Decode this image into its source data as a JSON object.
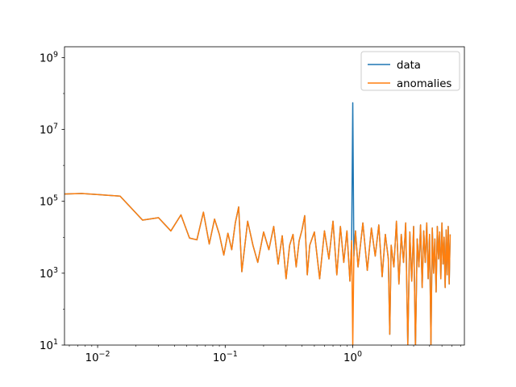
{
  "chart_data": {
    "type": "line",
    "title": "",
    "xlabel": "",
    "ylabel": "",
    "xscale": "log",
    "yscale": "log",
    "xlim": [
      0.0055,
      7.5
    ],
    "ylim": [
      10,
      2000000000.0
    ],
    "grid": false,
    "legend_position": "top-right",
    "x_ticks": [
      {
        "base": "10",
        "exp": "−2",
        "value": 0.01
      },
      {
        "base": "10",
        "exp": "−1",
        "value": 0.1
      },
      {
        "base": "10",
        "exp": "0",
        "value": 1
      }
    ],
    "y_ticks": [
      {
        "base": "10",
        "exp": "1",
        "value": 10
      },
      {
        "base": "10",
        "exp": "3",
        "value": 1000
      },
      {
        "base": "10",
        "exp": "5",
        "value": 100000
      },
      {
        "base": "10",
        "exp": "7",
        "value": 10000000
      },
      {
        "base": "10",
        "exp": "9",
        "value": 1000000000
      }
    ],
    "series": [
      {
        "name": "data",
        "color": "#1f77b4",
        "points": [
          [
            0.0055,
            160000
          ],
          [
            0.0075,
            165000
          ],
          [
            0.015,
            140000
          ],
          [
            0.0225,
            30000
          ],
          [
            0.03,
            35000
          ],
          [
            0.0375,
            15000
          ],
          [
            0.045,
            42000
          ],
          [
            0.0525,
            9500
          ],
          [
            0.06,
            8500
          ],
          [
            0.0675,
            50000
          ],
          [
            0.075,
            6500
          ],
          [
            0.0825,
            32000
          ],
          [
            0.09,
            12000
          ],
          [
            0.0975,
            3200
          ],
          [
            0.105,
            13000
          ],
          [
            0.1125,
            4500
          ],
          [
            0.12,
            25000
          ],
          [
            0.1275,
            70000
          ],
          [
            0.135,
            1100
          ],
          [
            0.15,
            28000
          ],
          [
            0.165,
            6000
          ],
          [
            0.18,
            2000
          ],
          [
            0.2,
            14000
          ],
          [
            0.22,
            4500
          ],
          [
            0.24,
            20000
          ],
          [
            0.26,
            1800
          ],
          [
            0.28,
            11000
          ],
          [
            0.3,
            700
          ],
          [
            0.32,
            6000
          ],
          [
            0.34,
            12000
          ],
          [
            0.36,
            1500
          ],
          [
            0.38,
            8000
          ],
          [
            0.4,
            16000
          ],
          [
            0.42,
            40000
          ],
          [
            0.44,
            900
          ],
          [
            0.46,
            6000
          ],
          [
            0.5,
            14000
          ],
          [
            0.55,
            700
          ],
          [
            0.6,
            15000
          ],
          [
            0.65,
            2500
          ],
          [
            0.7,
            28000
          ],
          [
            0.75,
            900
          ],
          [
            0.8,
            20000
          ],
          [
            0.85,
            2000
          ],
          [
            0.9,
            15000
          ],
          [
            0.95,
            600
          ],
          [
            0.98,
            8000
          ],
          [
            1.0,
            55000000
          ],
          [
            1.02,
            3000
          ],
          [
            1.05,
            15000
          ],
          [
            1.1,
            1500
          ],
          [
            1.2,
            25000
          ],
          [
            1.3,
            1200
          ],
          [
            1.4,
            18000
          ],
          [
            1.5,
            3000
          ],
          [
            1.6,
            22000
          ],
          [
            1.7,
            800
          ],
          [
            1.8,
            12000
          ],
          [
            1.9,
            2500
          ],
          [
            1.95,
            20
          ],
          [
            2.0,
            6000
          ],
          [
            2.1,
            1500
          ],
          [
            2.2,
            28000
          ],
          [
            2.3,
            500
          ],
          [
            2.4,
            12000
          ],
          [
            2.5,
            2000
          ],
          [
            2.6,
            25000
          ],
          [
            2.7,
            10
          ],
          [
            2.8,
            14000
          ],
          [
            2.9,
            600
          ],
          [
            3.0,
            20000
          ],
          [
            3.1,
            8
          ],
          [
            3.2,
            9000
          ],
          [
            3.3,
            1500
          ],
          [
            3.4,
            22000
          ],
          [
            3.5,
            400
          ],
          [
            3.6,
            15000
          ],
          [
            3.7,
            2000
          ],
          [
            3.8,
            25000
          ],
          [
            3.9,
            700
          ],
          [
            4.0,
            12000
          ],
          [
            4.1,
            10
          ],
          [
            4.2,
            18000
          ],
          [
            4.3,
            1000
          ],
          [
            4.4,
            9000
          ],
          [
            4.5,
            300
          ],
          [
            4.6,
            20000
          ],
          [
            4.7,
            2500
          ],
          [
            4.8,
            14000
          ],
          [
            4.9,
            700
          ],
          [
            5.0,
            25000
          ],
          [
            5.1,
            1800
          ],
          [
            5.2,
            10000
          ],
          [
            5.3,
            400
          ],
          [
            5.4,
            16000
          ],
          [
            5.5,
            900
          ],
          [
            5.6,
            20000
          ],
          [
            5.7,
            500
          ],
          [
            5.8,
            12000
          ]
        ]
      },
      {
        "name": "anomalies",
        "color": "#ff7f0e",
        "points": [
          [
            0.0055,
            160000
          ],
          [
            0.0075,
            165000
          ],
          [
            0.015,
            140000
          ],
          [
            0.0225,
            30000
          ],
          [
            0.03,
            35000
          ],
          [
            0.0375,
            15000
          ],
          [
            0.045,
            42000
          ],
          [
            0.0525,
            9500
          ],
          [
            0.06,
            8500
          ],
          [
            0.0675,
            50000
          ],
          [
            0.075,
            6500
          ],
          [
            0.0825,
            32000
          ],
          [
            0.09,
            12000
          ],
          [
            0.0975,
            3200
          ],
          [
            0.105,
            13000
          ],
          [
            0.1125,
            4500
          ],
          [
            0.12,
            25000
          ],
          [
            0.1275,
            70000
          ],
          [
            0.135,
            1100
          ],
          [
            0.15,
            28000
          ],
          [
            0.165,
            6000
          ],
          [
            0.18,
            2000
          ],
          [
            0.2,
            14000
          ],
          [
            0.22,
            4500
          ],
          [
            0.24,
            20000
          ],
          [
            0.26,
            1800
          ],
          [
            0.28,
            11000
          ],
          [
            0.3,
            700
          ],
          [
            0.32,
            6000
          ],
          [
            0.34,
            12000
          ],
          [
            0.36,
            1500
          ],
          [
            0.38,
            8000
          ],
          [
            0.4,
            16000
          ],
          [
            0.42,
            40000
          ],
          [
            0.44,
            900
          ],
          [
            0.46,
            6000
          ],
          [
            0.5,
            14000
          ],
          [
            0.55,
            700
          ],
          [
            0.6,
            15000
          ],
          [
            0.65,
            2500
          ],
          [
            0.7,
            28000
          ],
          [
            0.75,
            900
          ],
          [
            0.8,
            20000
          ],
          [
            0.85,
            2000
          ],
          [
            0.9,
            15000
          ],
          [
            0.95,
            600
          ],
          [
            0.98,
            8000
          ],
          [
            1.0,
            10
          ],
          [
            1.02,
            3000
          ],
          [
            1.05,
            15000
          ],
          [
            1.1,
            1500
          ],
          [
            1.2,
            25000
          ],
          [
            1.3,
            1200
          ],
          [
            1.4,
            18000
          ],
          [
            1.5,
            3000
          ],
          [
            1.6,
            22000
          ],
          [
            1.7,
            800
          ],
          [
            1.8,
            12000
          ],
          [
            1.9,
            2500
          ],
          [
            1.95,
            20
          ],
          [
            2.0,
            6000
          ],
          [
            2.1,
            1500
          ],
          [
            2.2,
            28000
          ],
          [
            2.3,
            500
          ],
          [
            2.4,
            12000
          ],
          [
            2.5,
            2000
          ],
          [
            2.6,
            25000
          ],
          [
            2.7,
            10
          ],
          [
            2.8,
            14000
          ],
          [
            2.9,
            600
          ],
          [
            3.0,
            20000
          ],
          [
            3.1,
            8
          ],
          [
            3.2,
            9000
          ],
          [
            3.3,
            1500
          ],
          [
            3.4,
            22000
          ],
          [
            3.5,
            400
          ],
          [
            3.6,
            15000
          ],
          [
            3.7,
            2000
          ],
          [
            3.8,
            25000
          ],
          [
            3.9,
            700
          ],
          [
            4.0,
            12000
          ],
          [
            4.1,
            10
          ],
          [
            4.2,
            18000
          ],
          [
            4.3,
            1000
          ],
          [
            4.4,
            9000
          ],
          [
            4.5,
            300
          ],
          [
            4.6,
            20000
          ],
          [
            4.7,
            2500
          ],
          [
            4.8,
            14000
          ],
          [
            4.9,
            700
          ],
          [
            5.0,
            25000
          ],
          [
            5.1,
            1800
          ],
          [
            5.2,
            10000
          ],
          [
            5.3,
            400
          ],
          [
            5.4,
            16000
          ],
          [
            5.5,
            900
          ],
          [
            5.6,
            20000
          ],
          [
            5.7,
            500
          ],
          [
            5.8,
            12000
          ]
        ]
      }
    ]
  }
}
